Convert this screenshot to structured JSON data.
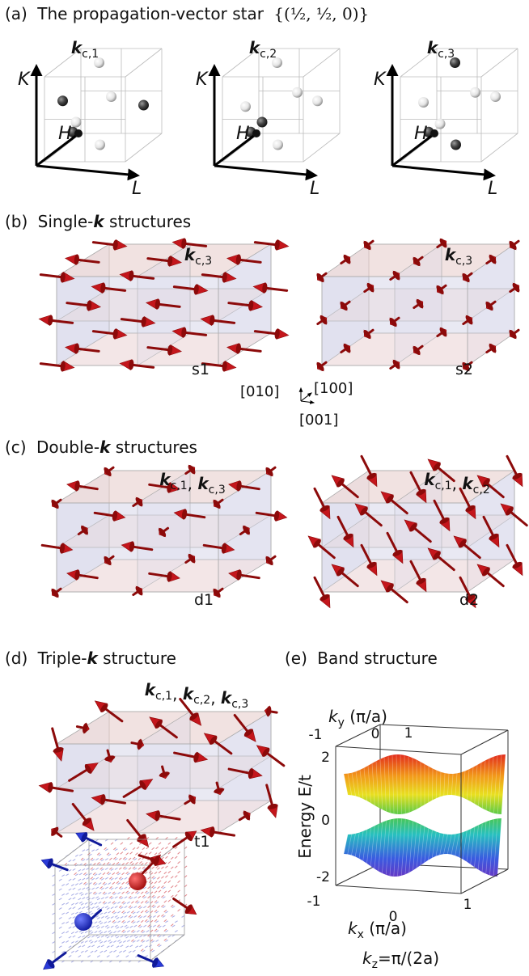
{
  "panel_a": {
    "label": "(a)",
    "title": "The propagation-vector star",
    "star": "{(½, ½, 0)}",
    "cubes": [
      {
        "vector": {
          "k": "k",
          "sub": "c,1"
        },
        "axes": [
          "K",
          "H",
          "L"
        ]
      },
      {
        "vector": {
          "k": "k",
          "sub": "c,2"
        },
        "axes": [
          "K",
          "H",
          "L"
        ]
      },
      {
        "vector": {
          "k": "k",
          "sub": "c,3"
        },
        "axes": [
          "K",
          "H",
          "L"
        ]
      }
    ]
  },
  "panel_b": {
    "label": "(b)",
    "title": [
      "Single-",
      "k",
      " structures"
    ],
    "separator": ", ",
    "structures": [
      {
        "name": "s1",
        "vectors": [
          {
            "k": "k",
            "sub": "c,3"
          }
        ]
      },
      {
        "name": "s2",
        "vectors": [
          {
            "k": "k",
            "sub": "c,3"
          }
        ]
      }
    ],
    "directions": [
      "[010]",
      "[100]",
      "[001]"
    ]
  },
  "panel_c": {
    "label": "(c)",
    "title": [
      "Double-",
      "k",
      " structures"
    ],
    "separator": ", ",
    "structures": [
      {
        "name": "d1",
        "vectors": [
          {
            "k": "k",
            "sub": "c,1"
          },
          {
            "k": "k",
            "sub": "c,3"
          }
        ]
      },
      {
        "name": "d2",
        "vectors": [
          {
            "k": "k",
            "sub": "c,1"
          },
          {
            "k": "k",
            "sub": "c,2"
          }
        ]
      }
    ]
  },
  "panel_d": {
    "label": "(d)",
    "title": [
      "Triple-",
      "k",
      " structure"
    ],
    "separator": ", ",
    "structures": [
      {
        "name": "t1",
        "vectors": [
          {
            "k": "k",
            "sub": "c,1"
          },
          {
            "k": "k",
            "sub": "c,2"
          },
          {
            "k": "k",
            "sub": "c,3"
          }
        ]
      }
    ]
  },
  "panel_e": {
    "label": "(e)",
    "title": "Band structure",
    "ky_label": {
      "k": "k",
      "sub": "y",
      "unit": " (π/a)"
    },
    "ky_ticks": [
      "-1",
      "0",
      "1"
    ],
    "energy_label": "Energy E/t",
    "energy_ticks": [
      "2",
      "0",
      "-2"
    ],
    "kx_label": {
      "k": "k",
      "sub": "x",
      "unit": " (π/a)"
    },
    "kx_ticks": [
      "-1",
      "0",
      "1"
    ],
    "kz_label": {
      "k": "k",
      "sub": "z",
      "rest": "=π/(2a)"
    }
  }
}
